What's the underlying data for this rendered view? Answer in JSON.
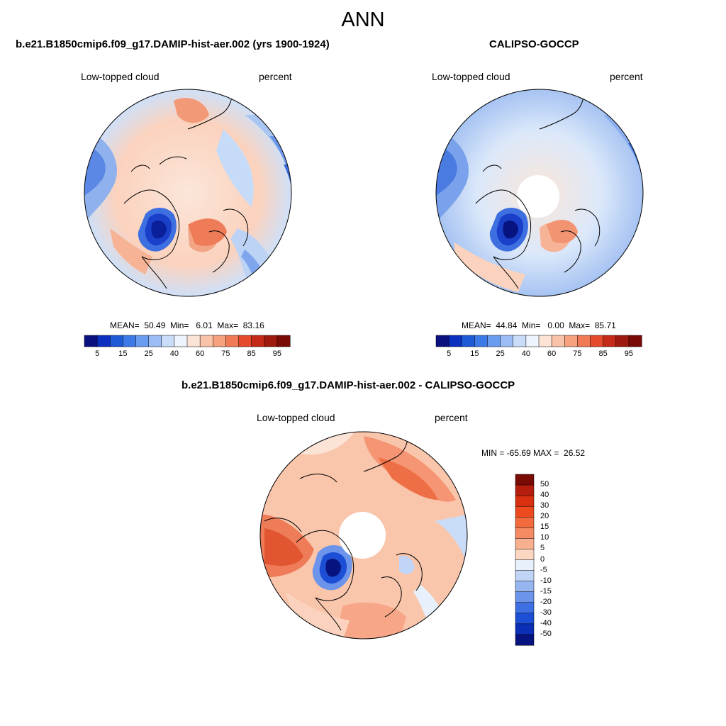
{
  "figure": {
    "title": "ANN"
  },
  "panels": [
    {
      "title": "b.e21.B1850cmip6.f09_g17.DAMIP-hist-aer.002 (yrs 1900-1924)",
      "left_label": "Low-topped cloud",
      "right_label": "percent",
      "stats": "MEAN=  50.49  Min=   6.01  Max=  83.16",
      "has_pole_hole": false
    },
    {
      "title": "CALIPSO-GOCCP",
      "left_label": "Low-topped cloud",
      "right_label": "percent",
      "stats": "MEAN=  44.84  Min=   0.00  Max=  85.71",
      "has_pole_hole": true
    },
    {
      "title": "b.e21.B1850cmip6.f09_g17.DAMIP-hist-aer.002 - CALIPSO-GOCCP",
      "left_label": "Low-topped cloud",
      "right_label": "percent",
      "stats": "MIN = -65.69 MAX =  26.52",
      "has_pole_hole": true
    }
  ],
  "colorbar_abs": {
    "tick_labels": [
      "5",
      "15",
      "25",
      "40",
      "60",
      "75",
      "85",
      "95"
    ],
    "colors": [
      "#0a1080",
      "#0b2fbf",
      "#1f5ad6",
      "#3d7ae8",
      "#6a9cf0",
      "#9bbcf5",
      "#c9dcf8",
      "#eef4fb",
      "#fbe3d6",
      "#f9c3a9",
      "#f6a17f",
      "#f07a55",
      "#e54a2c",
      "#c52a18",
      "#9e1a0e",
      "#7a0a05"
    ]
  },
  "colorbar_diff": {
    "tick_labels": [
      "50",
      "40",
      "30",
      "20",
      "15",
      "10",
      "5",
      "0",
      "-5",
      "-10",
      "-15",
      "-20",
      "-30",
      "-40",
      "-50"
    ],
    "colors": [
      "#7a0a05",
      "#b51e0c",
      "#d9300f",
      "#ee4a1f",
      "#f26b3e",
      "#f58a63",
      "#f8b08e",
      "#fbd7c2",
      "#e8f0fb",
      "#c0d4f6",
      "#97b6f0",
      "#6b94ea",
      "#3f70e3",
      "#1c4fd6",
      "#0a2fb6",
      "#07137e"
    ]
  },
  "palette": {
    "land_outline": "#000000",
    "frame": "#000000",
    "field_ocean_warm": "#f7b59a",
    "field_neutral": "#fbe0d3",
    "field_cool": "#a9c6f2",
    "field_deep_blue": "#1a3fc8"
  }
}
